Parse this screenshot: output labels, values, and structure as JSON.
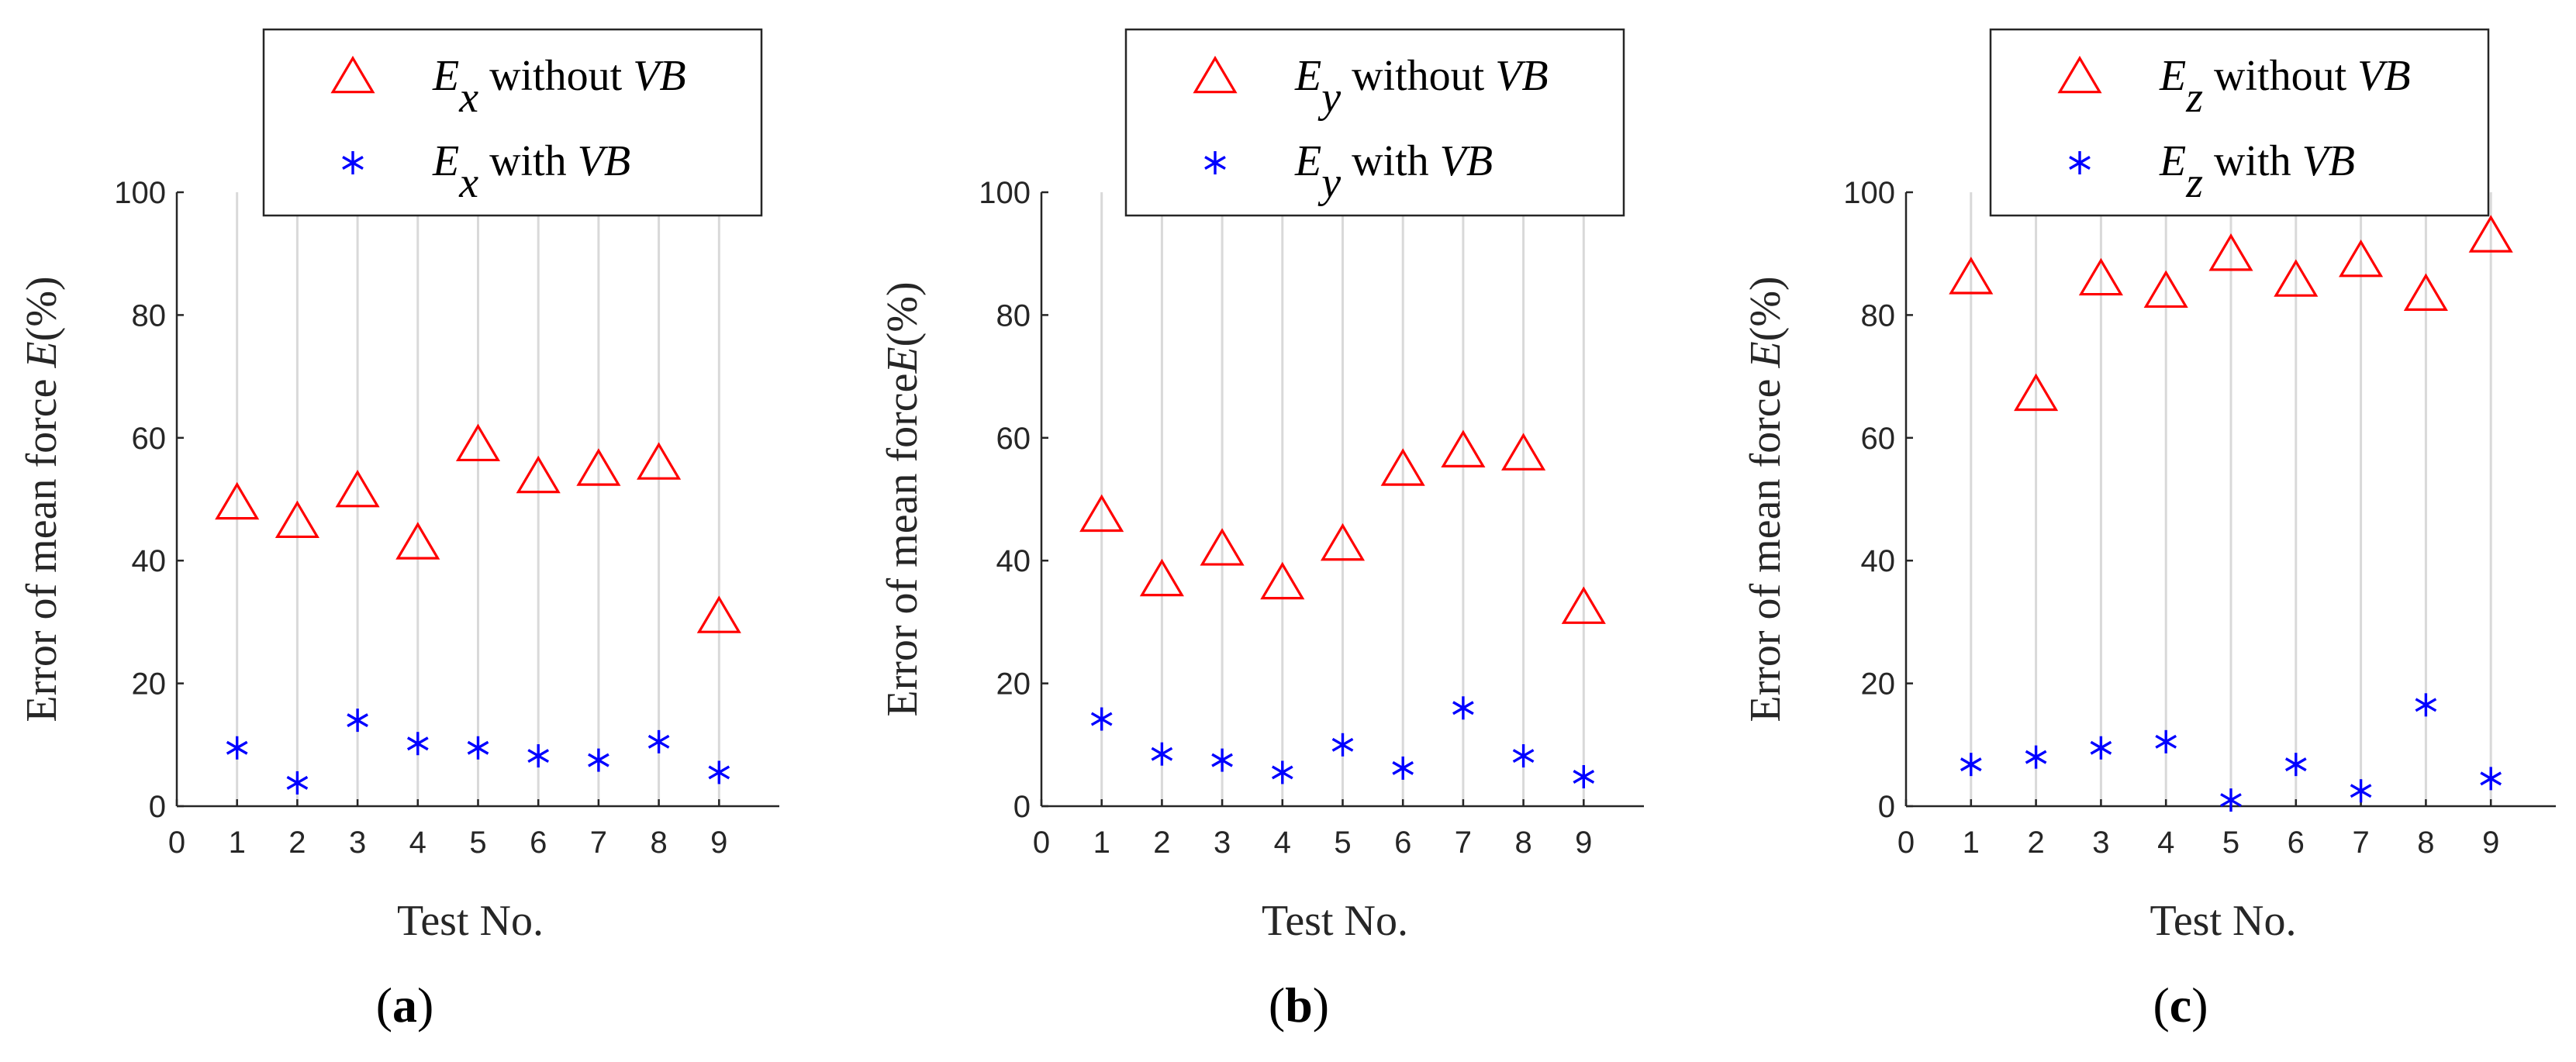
{
  "chart_data": [
    {
      "type": "scatter",
      "panel_label": "(a)",
      "panel_letter": "a",
      "xlabel": "Test No.",
      "ylabel_prefix": "Error of mean force ",
      "ylabel_var": "E",
      "ylabel_suffix": "(%)",
      "xlim": [
        0,
        10
      ],
      "ylim": [
        0,
        100
      ],
      "xticks": [
        0,
        1,
        2,
        3,
        4,
        5,
        6,
        7,
        8,
        9
      ],
      "yticks": [
        0,
        20,
        40,
        60,
        80,
        100
      ],
      "grid": "vertical",
      "legend_position": "top",
      "x": [
        1,
        2,
        3,
        4,
        5,
        6,
        7,
        8,
        9
      ],
      "series": [
        {
          "name": "E_x without VB",
          "var": "E",
          "sub": "x",
          "mid": " without ",
          "tail": "VB",
          "marker": "triangle",
          "color": "#ff0000",
          "values": [
            49.5,
            46.5,
            51.5,
            43,
            59,
            53.8,
            55,
            56,
            31
          ]
        },
        {
          "name": "E_x with VB",
          "var": "E",
          "sub": "x",
          "mid": " with ",
          "tail": "VB",
          "marker": "asterisk",
          "color": "#0000ff",
          "values": [
            9.5,
            3.8,
            14,
            10.2,
            9.5,
            8.2,
            7.5,
            10.5,
            5.5
          ]
        }
      ]
    },
    {
      "type": "scatter",
      "panel_label": "(b)",
      "panel_letter": "b",
      "xlabel": "Test No.",
      "ylabel_prefix": "Error of mean force",
      "ylabel_var": "E",
      "ylabel_suffix": "(%)",
      "xlim": [
        0,
        10
      ],
      "ylim": [
        0,
        100
      ],
      "xticks": [
        0,
        1,
        2,
        3,
        4,
        5,
        6,
        7,
        8,
        9
      ],
      "yticks": [
        0,
        20,
        40,
        60,
        80,
        100
      ],
      "grid": "vertical",
      "legend_position": "top",
      "x": [
        1,
        2,
        3,
        4,
        5,
        6,
        7,
        8,
        9
      ],
      "series": [
        {
          "name": "E_y without VB",
          "var": "E",
          "sub": "y",
          "mid": " without ",
          "tail": "VB",
          "marker": "triangle",
          "color": "#ff0000",
          "values": [
            47.5,
            37,
            42,
            36.5,
            42.8,
            55,
            58,
            57.5,
            32.5
          ]
        },
        {
          "name": "E_y with VB",
          "var": "E",
          "sub": "y",
          "mid": " with ",
          "tail": "VB",
          "marker": "asterisk",
          "color": "#0000ff",
          "values": [
            14.2,
            8.5,
            7.5,
            5.5,
            10,
            6.2,
            16,
            8.2,
            4.8
          ]
        }
      ]
    },
    {
      "type": "scatter",
      "panel_label": "(c)",
      "panel_letter": "c",
      "xlabel": "Test No.",
      "ylabel_prefix": "Error of mean force ",
      "ylabel_var": "E",
      "ylabel_suffix": "(%)",
      "xlim": [
        0,
        10
      ],
      "ylim": [
        0,
        100
      ],
      "xticks": [
        0,
        1,
        2,
        3,
        4,
        5,
        6,
        7,
        8,
        9
      ],
      "yticks": [
        0,
        20,
        40,
        60,
        80,
        100
      ],
      "grid": "vertical",
      "legend_position": "top",
      "x": [
        1,
        2,
        3,
        4,
        5,
        6,
        7,
        8,
        9
      ],
      "series": [
        {
          "name": "E_z without VB",
          "var": "E",
          "sub": "z",
          "mid": " without ",
          "tail": "VB",
          "marker": "triangle",
          "color": "#ff0000",
          "values": [
            86.2,
            67.2,
            86,
            84,
            90,
            85.8,
            89,
            83.5,
            93
          ]
        },
        {
          "name": "E_z with VB",
          "var": "E",
          "sub": "z",
          "mid": " with ",
          "tail": "VB",
          "marker": "asterisk",
          "color": "#0000ff",
          "values": [
            6.8,
            8,
            9.5,
            10.5,
            1,
            6.8,
            2.5,
            16.5,
            4.5
          ]
        }
      ]
    }
  ]
}
